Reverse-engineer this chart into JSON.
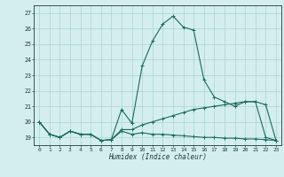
{
  "xlabel": "Humidex (Indice chaleur)",
  "xlim": [
    -0.5,
    23.5
  ],
  "ylim": [
    18.5,
    27.5
  ],
  "yticks": [
    19,
    20,
    21,
    22,
    23,
    24,
    25,
    26,
    27
  ],
  "xticks": [
    0,
    1,
    2,
    3,
    4,
    5,
    6,
    7,
    8,
    9,
    10,
    11,
    12,
    13,
    14,
    15,
    16,
    17,
    18,
    19,
    20,
    21,
    22,
    23
  ],
  "bg_color": "#d4eeee",
  "grid_color": "#afd8d8",
  "line_color": "#1a6b5a",
  "series1_x": [
    0,
    1,
    2,
    3,
    4,
    5,
    6,
    7,
    8,
    9,
    10,
    11,
    12,
    13,
    14,
    15,
    16,
    17,
    18,
    19,
    20,
    21,
    22,
    23
  ],
  "series1_y": [
    20.0,
    19.2,
    19.0,
    19.4,
    19.2,
    19.2,
    18.8,
    18.85,
    20.8,
    19.9,
    23.6,
    25.2,
    26.3,
    26.8,
    26.1,
    25.9,
    22.7,
    21.6,
    21.3,
    21.0,
    21.3,
    21.3,
    19.0,
    18.8
  ],
  "series2_x": [
    0,
    1,
    2,
    3,
    4,
    5,
    6,
    7,
    8,
    9,
    10,
    11,
    12,
    13,
    14,
    15,
    16,
    17,
    18,
    19,
    20,
    21,
    22,
    23
  ],
  "series2_y": [
    20.0,
    19.2,
    19.0,
    19.4,
    19.2,
    19.2,
    18.8,
    18.85,
    19.5,
    19.5,
    19.8,
    20.0,
    20.2,
    20.4,
    20.6,
    20.8,
    20.9,
    21.0,
    21.1,
    21.2,
    21.3,
    21.3,
    21.1,
    18.8
  ],
  "series3_x": [
    0,
    1,
    2,
    3,
    4,
    5,
    6,
    7,
    8,
    9,
    10,
    11,
    12,
    13,
    14,
    15,
    16,
    17,
    18,
    19,
    20,
    21,
    22,
    23
  ],
  "series3_y": [
    20.0,
    19.2,
    19.0,
    19.4,
    19.2,
    19.2,
    18.8,
    18.85,
    19.4,
    19.2,
    19.3,
    19.2,
    19.2,
    19.15,
    19.1,
    19.05,
    19.0,
    19.0,
    18.95,
    18.95,
    18.9,
    18.9,
    18.85,
    18.8
  ]
}
